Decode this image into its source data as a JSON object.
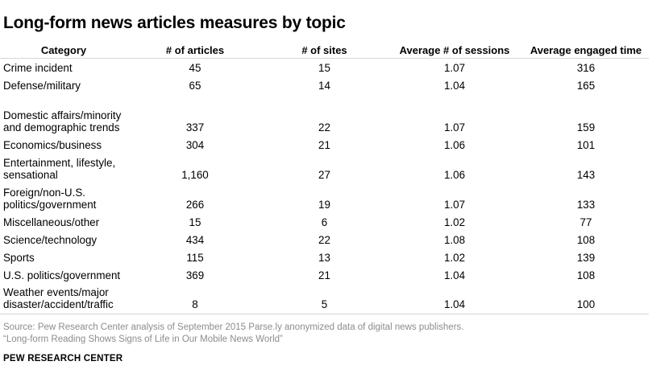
{
  "chart_data": {
    "type": "table",
    "title": "Long-form news articles measures by topic",
    "columns": [
      "Category",
      "# of articles",
      "# of sites",
      "Average # of sessions",
      "Average engaged time"
    ],
    "rows": [
      {
        "category": "Crime incident",
        "articles": "45",
        "sites": "15",
        "sessions": "1.07",
        "engaged_time": "316"
      },
      {
        "category": "Defense/military",
        "articles": "65",
        "sites": "14",
        "sessions": "1.04",
        "engaged_time": "165"
      },
      {
        "category": "Domestic affairs/minority and demographic trends",
        "articles": "337",
        "sites": "22",
        "sessions": "1.07",
        "engaged_time": "159"
      },
      {
        "category": "Economics/business",
        "articles": "304",
        "sites": "21",
        "sessions": "1.06",
        "engaged_time": "101"
      },
      {
        "category": "Entertainment, lifestyle, sensational",
        "articles": "1,160",
        "sites": "27",
        "sessions": "1.06",
        "engaged_time": "143"
      },
      {
        "category": "Foreign/non-U.S. politics/government",
        "articles": "266",
        "sites": "19",
        "sessions": "1.07",
        "engaged_time": "133"
      },
      {
        "category": "Miscellaneous/other",
        "articles": "15",
        "sites": "6",
        "sessions": "1.02",
        "engaged_time": "77"
      },
      {
        "category": "Science/technology",
        "articles": "434",
        "sites": "22",
        "sessions": "1.08",
        "engaged_time": "108"
      },
      {
        "category": "Sports",
        "articles": "115",
        "sites": "13",
        "sessions": "1.02",
        "engaged_time": "139"
      },
      {
        "category": "U.S. politics/government",
        "articles": "369",
        "sites": "21",
        "sessions": "1.04",
        "engaged_time": "108"
      },
      {
        "category": "Weather events/major disaster/accident/traffic",
        "articles": "8",
        "sites": "5",
        "sessions": "1.04",
        "engaged_time": "100"
      }
    ]
  },
  "footer": {
    "source": "Source: Pew Research Center analysis of September 2015 Parse.ly anonymized data of digital news publishers.",
    "report": "“Long-form Reading Shows Signs of Life in Our Mobile News World”",
    "brand": "PEW RESEARCH CENTER"
  }
}
